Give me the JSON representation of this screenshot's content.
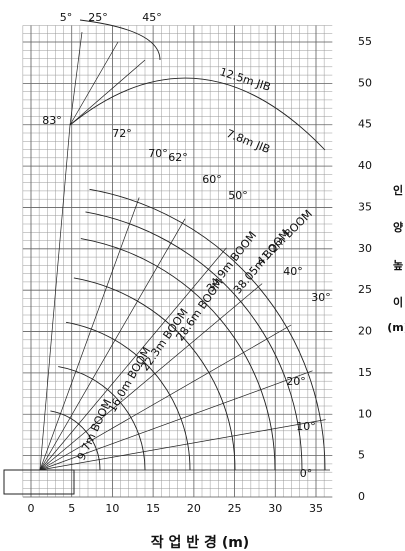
{
  "axes": {
    "x_label": "작 업 반 경 (m)",
    "y_label": [
      "인",
      "양",
      "높",
      "이",
      "(m)"
    ],
    "xlim": [
      0,
      35
    ],
    "ylim": [
      0,
      55
    ],
    "xticks": [
      0,
      5,
      10,
      15,
      20,
      25,
      30,
      35
    ],
    "yticks": [
      0,
      5,
      10,
      15,
      20,
      25,
      30,
      35,
      40,
      45,
      50,
      55
    ]
  },
  "booms": [
    "9.7m BOOM",
    "16.0m BOOM",
    "22.3m BOOM",
    "28.6m BOOM",
    "34.9m BOOM",
    "38.05m BOOM",
    "41.2m BOOM",
    "12.5m JIB",
    "7.8m JIB"
  ],
  "angles": [
    "0°",
    "10°",
    "20°",
    "30°",
    "40°",
    "50°",
    "60°",
    "62°",
    "70°",
    "72°",
    "83°",
    "5°",
    "25°",
    "45°"
  ]
}
